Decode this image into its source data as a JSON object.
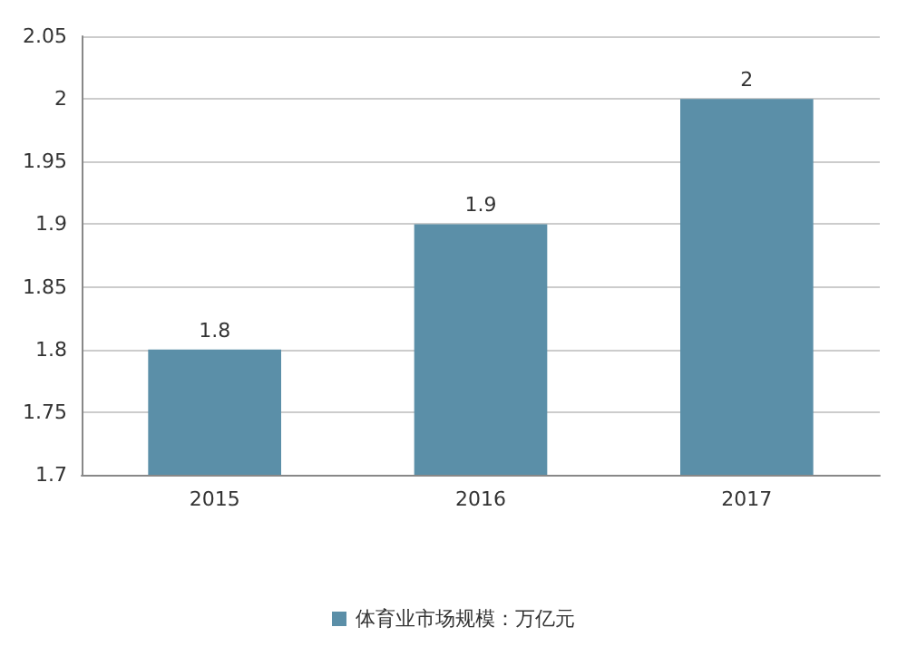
{
  "chart_data": {
    "type": "bar",
    "categories": [
      "2015",
      "2016",
      "2017"
    ],
    "series": [
      {
        "name": "体育业市场规模：万亿元",
        "color": "#5b8fa8",
        "values": [
          1.8,
          1.9,
          2
        ]
      }
    ],
    "ylim": [
      1.7,
      2.05
    ],
    "yticks": [
      1.7,
      1.75,
      1.8,
      1.85,
      1.9,
      1.95,
      2,
      2.05
    ],
    "grid": "y",
    "legend": "bottom",
    "data_labels": true
  }
}
